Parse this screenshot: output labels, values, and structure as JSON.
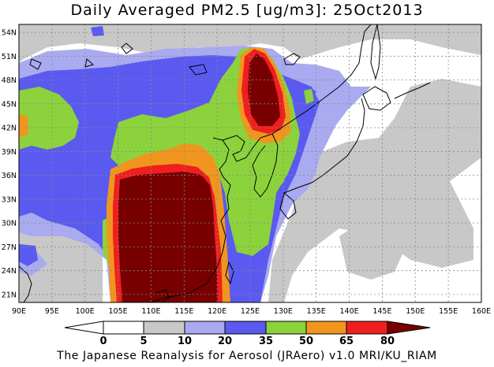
{
  "title": "Daily Averaged PM2.5 [ug/m3]: 25Oct2013",
  "credit": "The Japanese Reanalysis for Aerosol (JRAero) v1.0 MRI/KU_RIAM",
  "map": {
    "lon_range": [
      90,
      160
    ],
    "lat_range": [
      20,
      55
    ],
    "lon_ticks": [
      "90E",
      "95E",
      "100E",
      "105E",
      "110E",
      "115E",
      "120E",
      "125E",
      "130E",
      "135E",
      "140E",
      "145E",
      "150E",
      "155E",
      "160E"
    ],
    "lat_ticks": [
      "21N",
      "24N",
      "27N",
      "30N",
      "33N",
      "36N",
      "39N",
      "42N",
      "45N",
      "48N",
      "51N",
      "54N"
    ],
    "gridlines": true
  },
  "colorbar": {
    "levels": [
      "0",
      "5",
      "10",
      "20",
      "35",
      "50",
      "65",
      "80"
    ],
    "colors": {
      "below_5": "#ffffff",
      "c5_10": "#c8c8c8",
      "c10_20": "#aaaaf0",
      "c20_35": "#5a5af0",
      "c35_50": "#8cd23c",
      "c50_65": "#f0961e",
      "c65_80": "#f01e1e",
      "above_80": "#780000"
    }
  }
}
